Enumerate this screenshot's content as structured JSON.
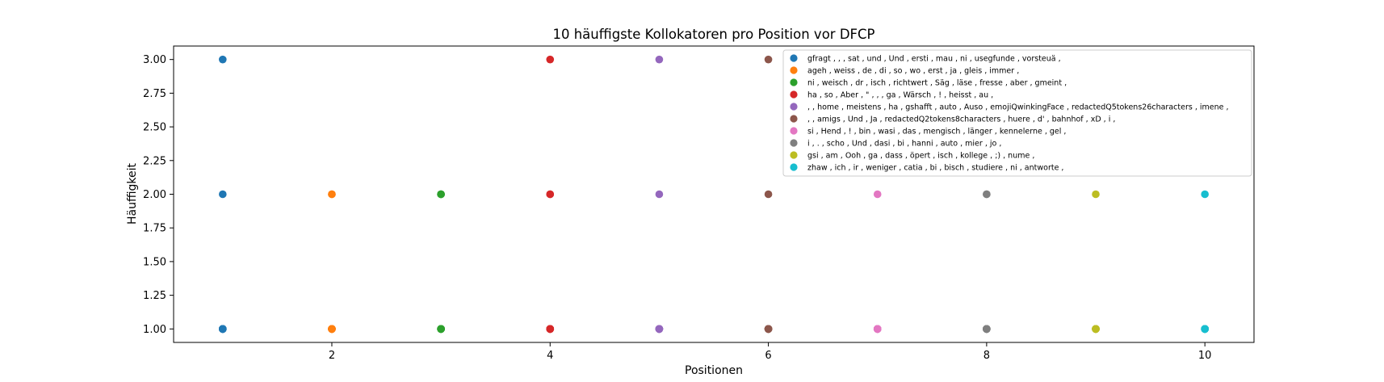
{
  "chart_data": {
    "type": "scatter",
    "title": "10 häuffigste Kollokatoren pro Position vor DFCP",
    "xlabel": "Positionen",
    "ylabel": "Häuffigkeit",
    "xlim": [
      0.55,
      10.45
    ],
    "ylim": [
      0.9,
      3.1
    ],
    "xticks": [
      2,
      4,
      6,
      8,
      10
    ],
    "yticks": [
      1.0,
      1.25,
      1.5,
      1.75,
      2.0,
      2.25,
      2.5,
      2.75,
      3.0
    ],
    "ytick_labels": [
      "1.00",
      "1.25",
      "1.50",
      "1.75",
      "2.00",
      "2.25",
      "2.50",
      "2.75",
      "3.00"
    ],
    "grid": false,
    "legend_position": "top-right",
    "series": [
      {
        "name": "gfragt , , , sat , und , Und , ersti , mau , ni , usegfunde , vorsteuä ,",
        "color": "#1f77b4",
        "x": 1,
        "values": [
          3,
          2,
          1,
          1,
          1,
          1,
          1,
          1,
          1,
          1
        ]
      },
      {
        "name": "ageh , weiss , de , di , so , wo , erst , ja , gleis , immer ,",
        "color": "#ff7f0e",
        "x": 2,
        "values": [
          2,
          2,
          1,
          1,
          1,
          1,
          1,
          1,
          1,
          1
        ]
      },
      {
        "name": "ni , weisch , dr , isch , richtwert , Säg , läse , fresse , aber , gmeint ,",
        "color": "#2ca02c",
        "x": 3,
        "values": [
          2,
          2,
          2,
          1,
          1,
          1,
          1,
          1,
          1,
          1
        ]
      },
      {
        "name": "ha , so , Aber , \" , , , ga , Wärsch , ! , heisst , au ,",
        "color": "#d62728",
        "x": 4,
        "values": [
          3,
          2,
          2,
          1,
          1,
          1,
          1,
          1,
          1,
          1
        ]
      },
      {
        "name": ", , home , meistens , ha , gshafft , auto , Auso , emojiQwinkingFace , redactedQ5tokens26characters , imene ,",
        "color": "#9467bd",
        "x": 5,
        "values": [
          3,
          2,
          1,
          1,
          1,
          1,
          1,
          1,
          1,
          1
        ]
      },
      {
        "name": ", , amigs , Und , Ja , redactedQ2tokens8characters , huere , d' , bahnhof , xD , i ,",
        "color": "#8c564b",
        "x": 6,
        "values": [
          3,
          2,
          1,
          1,
          1,
          1,
          1,
          1,
          1,
          1
        ]
      },
      {
        "name": "si , Hend , ! , bin , wasi , das , mengisch , länger , kennelerne , gel ,",
        "color": "#e377c2",
        "x": 7,
        "values": [
          2,
          1,
          1,
          1,
          1,
          1,
          1,
          1,
          1,
          1
        ]
      },
      {
        "name": "i , . , scho , Und , dasi , bi , hanni , auto , mier , jo ,",
        "color": "#7f7f7f",
        "x": 8,
        "values": [
          2,
          2,
          1,
          1,
          1,
          1,
          1,
          1,
          1,
          1
        ]
      },
      {
        "name": "gsi , am , Ooh , ga , dass , öpert , isch , kollege , ;) , nume ,",
        "color": "#bcbd22",
        "x": 9,
        "values": [
          2,
          1,
          1,
          1,
          1,
          1,
          1,
          1,
          1,
          1
        ]
      },
      {
        "name": "zhaw , ich , ir , weniger , catia , bi , bisch , studiere , ni , antworte ,",
        "color": "#17becf",
        "x": 10,
        "values": [
          2,
          1,
          1,
          1,
          1,
          1,
          1,
          1,
          1,
          1
        ]
      }
    ]
  }
}
